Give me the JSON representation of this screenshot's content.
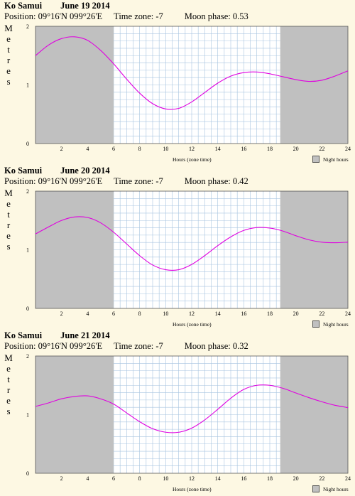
{
  "chart_data": [
    {
      "type": "line",
      "place": "Ko Samui",
      "date": "June 19 2014",
      "position": "Position: 09°16'N 099°26'E",
      "timezone": "Time zone: -7",
      "moon": "Moon phase: 0.53",
      "ylabel": "Metres",
      "xlabel": "Hours (zone time)",
      "legend": "Night hours",
      "xlim": [
        0,
        24
      ],
      "ylim": [
        0,
        2
      ],
      "xticks": [
        2,
        4,
        6,
        8,
        10,
        12,
        14,
        16,
        18,
        20,
        22,
        24
      ],
      "yticks": [
        0,
        1,
        2
      ],
      "night": [
        [
          0,
          6.0
        ],
        [
          18.8,
          24
        ]
      ],
      "x": [
        0,
        1,
        2,
        3,
        4,
        5,
        6,
        7,
        8,
        9,
        10,
        11,
        12,
        13,
        14,
        15,
        16,
        17,
        18,
        19,
        20,
        21,
        22,
        23,
        24
      ],
      "y": [
        1.5,
        1.68,
        1.79,
        1.82,
        1.76,
        1.59,
        1.36,
        1.1,
        0.86,
        0.68,
        0.59,
        0.6,
        0.71,
        0.87,
        1.03,
        1.15,
        1.21,
        1.22,
        1.19,
        1.14,
        1.09,
        1.06,
        1.08,
        1.15,
        1.24
      ],
      "color": "#e000e0",
      "night_color": "#c0c0c0",
      "grid_color": "#a8c4e0"
    },
    {
      "type": "line",
      "place": "Ko Samui",
      "date": "June 20 2014",
      "position": "Position: 09°16'N 099°26'E",
      "timezone": "Time zone: -7",
      "moon": "Moon phase: 0.42",
      "ylabel": "Metres",
      "xlabel": "Hours (zone time)",
      "legend": "Night hours",
      "xlim": [
        0,
        24
      ],
      "ylim": [
        0,
        2
      ],
      "xticks": [
        2,
        4,
        6,
        8,
        10,
        12,
        14,
        16,
        18,
        20,
        22,
        24
      ],
      "yticks": [
        0,
        1,
        2
      ],
      "night": [
        [
          0,
          6.0
        ],
        [
          18.8,
          24
        ]
      ],
      "x": [
        0,
        1,
        2,
        3,
        4,
        5,
        6,
        7,
        8,
        9,
        10,
        11,
        12,
        13,
        14,
        15,
        16,
        17,
        18,
        19,
        20,
        21,
        22,
        23,
        24
      ],
      "y": [
        1.27,
        1.39,
        1.5,
        1.56,
        1.55,
        1.46,
        1.3,
        1.1,
        0.9,
        0.74,
        0.66,
        0.66,
        0.75,
        0.9,
        1.07,
        1.22,
        1.33,
        1.38,
        1.37,
        1.32,
        1.24,
        1.17,
        1.13,
        1.12,
        1.13
      ],
      "color": "#e000e0",
      "night_color": "#c0c0c0",
      "grid_color": "#a8c4e0"
    },
    {
      "type": "line",
      "place": "Ko Samui",
      "date": "June 21 2014",
      "position": "Position: 09°16'N 099°26'E",
      "timezone": "Time zone: -7",
      "moon": "Moon phase: 0.32",
      "ylabel": "Metres",
      "xlabel": "Hours (zone time)",
      "legend": "Night hours",
      "xlim": [
        0,
        24
      ],
      "ylim": [
        0,
        2
      ],
      "xticks": [
        2,
        4,
        6,
        8,
        10,
        12,
        14,
        16,
        18,
        20,
        22,
        24
      ],
      "yticks": [
        0,
        1,
        2
      ],
      "night": [
        [
          0,
          6.0
        ],
        [
          18.8,
          24
        ]
      ],
      "x": [
        0,
        1,
        2,
        3,
        4,
        5,
        6,
        7,
        8,
        9,
        10,
        11,
        12,
        13,
        14,
        15,
        16,
        17,
        18,
        19,
        20,
        21,
        22,
        23,
        24
      ],
      "y": [
        1.14,
        1.2,
        1.27,
        1.31,
        1.32,
        1.27,
        1.18,
        1.03,
        0.88,
        0.76,
        0.7,
        0.7,
        0.77,
        0.91,
        1.09,
        1.28,
        1.43,
        1.5,
        1.5,
        1.45,
        1.37,
        1.29,
        1.22,
        1.16,
        1.12
      ],
      "color": "#e000e0",
      "night_color": "#c0c0c0",
      "grid_color": "#a8c4e0"
    }
  ]
}
